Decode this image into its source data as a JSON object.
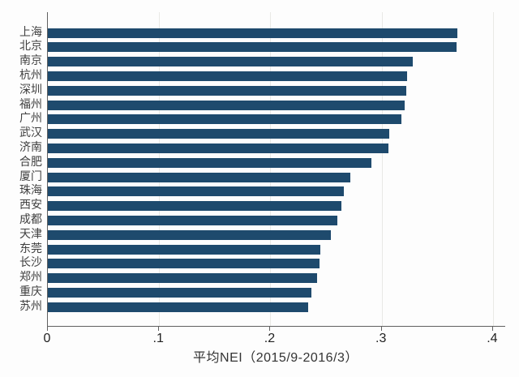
{
  "chart_data": {
    "type": "bar",
    "orientation": "horizontal",
    "title": "",
    "xlabel": "平均NEI（2015/9-2016/3）",
    "ylabel": "",
    "categories": [
      "上海",
      "北京",
      "南京",
      "杭州",
      "深圳",
      "福州",
      "广州",
      "武汉",
      "济南",
      "合肥",
      "厦门",
      "珠海",
      "西安",
      "成都",
      "天津",
      "东莞",
      "长沙",
      "郑州",
      "重庆",
      "苏州"
    ],
    "values": [
      0.368,
      0.367,
      0.328,
      0.323,
      0.322,
      0.321,
      0.318,
      0.307,
      0.306,
      0.291,
      0.272,
      0.266,
      0.264,
      0.26,
      0.254,
      0.245,
      0.244,
      0.242,
      0.237,
      0.234
    ],
    "x_ticks": [
      "0",
      ".1",
      ".2",
      ".3",
      ".4"
    ],
    "x_tick_values": [
      0,
      0.1,
      0.2,
      0.3,
      0.4
    ],
    "xlim": [
      0,
      0.411
    ],
    "grid": true,
    "gridlines": "vertical-at-ticks",
    "legend": "none",
    "bar_color": "#1e4a6d",
    "axis_color": "#606060",
    "gridline_color": "#e9e9e6",
    "background_color": "#fdfdfd",
    "sort_order": "descending"
  }
}
